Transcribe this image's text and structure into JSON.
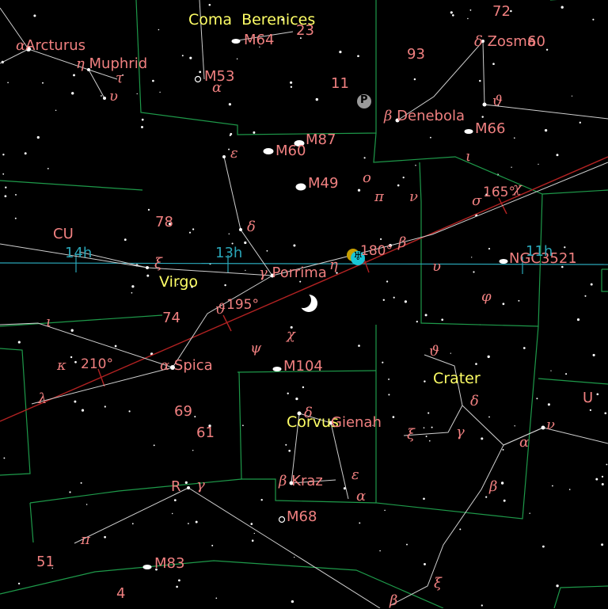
{
  "colors": {
    "background": "#000000",
    "constellation_lines": "#cfcfcf",
    "boundaries": "#1e9a4a",
    "ecliptic": "#b22222",
    "equator": "#2aa6b8",
    "labels": "#f08080",
    "constellation_names": "#ffff66"
  },
  "constellations": {
    "coma": "Coma Berenices",
    "virgo": "Virgo",
    "crater": "Crater",
    "corvus": "Corvus",
    "cu": "CU"
  },
  "stars": {
    "arcturus": "Arcturus",
    "muphrid": "Muphrid",
    "zosma": "Zosma",
    "denebola": "Denebola",
    "porrima": "Porrima",
    "spica": "Spica",
    "gienah": "Gienah",
    "kraz": "Kraz"
  },
  "greek": {
    "alpha": "α",
    "beta": "β",
    "gamma": "γ",
    "delta": "δ",
    "epsilon": "ε",
    "eta": "η",
    "theta": "ϑ",
    "iota": "ι",
    "kappa": "κ",
    "lambda": "λ",
    "nu": "ν",
    "xi": "ξ",
    "omicron": "ο",
    "pi": "π",
    "sigma": "σ",
    "tau": "τ",
    "upsilon": "υ",
    "phi": "φ",
    "chi": "χ",
    "psi": "ψ"
  },
  "flamsteed": {
    "n72": "72",
    "n60": "60",
    "n93": "93",
    "n11": "11",
    "n23": "23",
    "n78": "78",
    "n74": "74",
    "n69": "69",
    "n61": "61",
    "n51": "51",
    "n4": "4"
  },
  "variables": {
    "r": "R",
    "u": "U"
  },
  "deep_sky": {
    "m64": "M64",
    "m53": "M53",
    "m87": "M87",
    "m60": "M60",
    "m49": "M49",
    "m66": "M66",
    "m104": "M104",
    "m68": "M68",
    "m83": "M83",
    "ngc3521": "NGC3521"
  },
  "ra_labels": {
    "h14": "14h",
    "h13": "13h",
    "h11": "11h"
  },
  "ecliptic_labels": {
    "d210": "210°",
    "d195": "195°",
    "d180": "180°",
    "d165": "165°"
  },
  "planets": {
    "pluto_symbol": "P",
    "uranus_symbol": "♅"
  }
}
